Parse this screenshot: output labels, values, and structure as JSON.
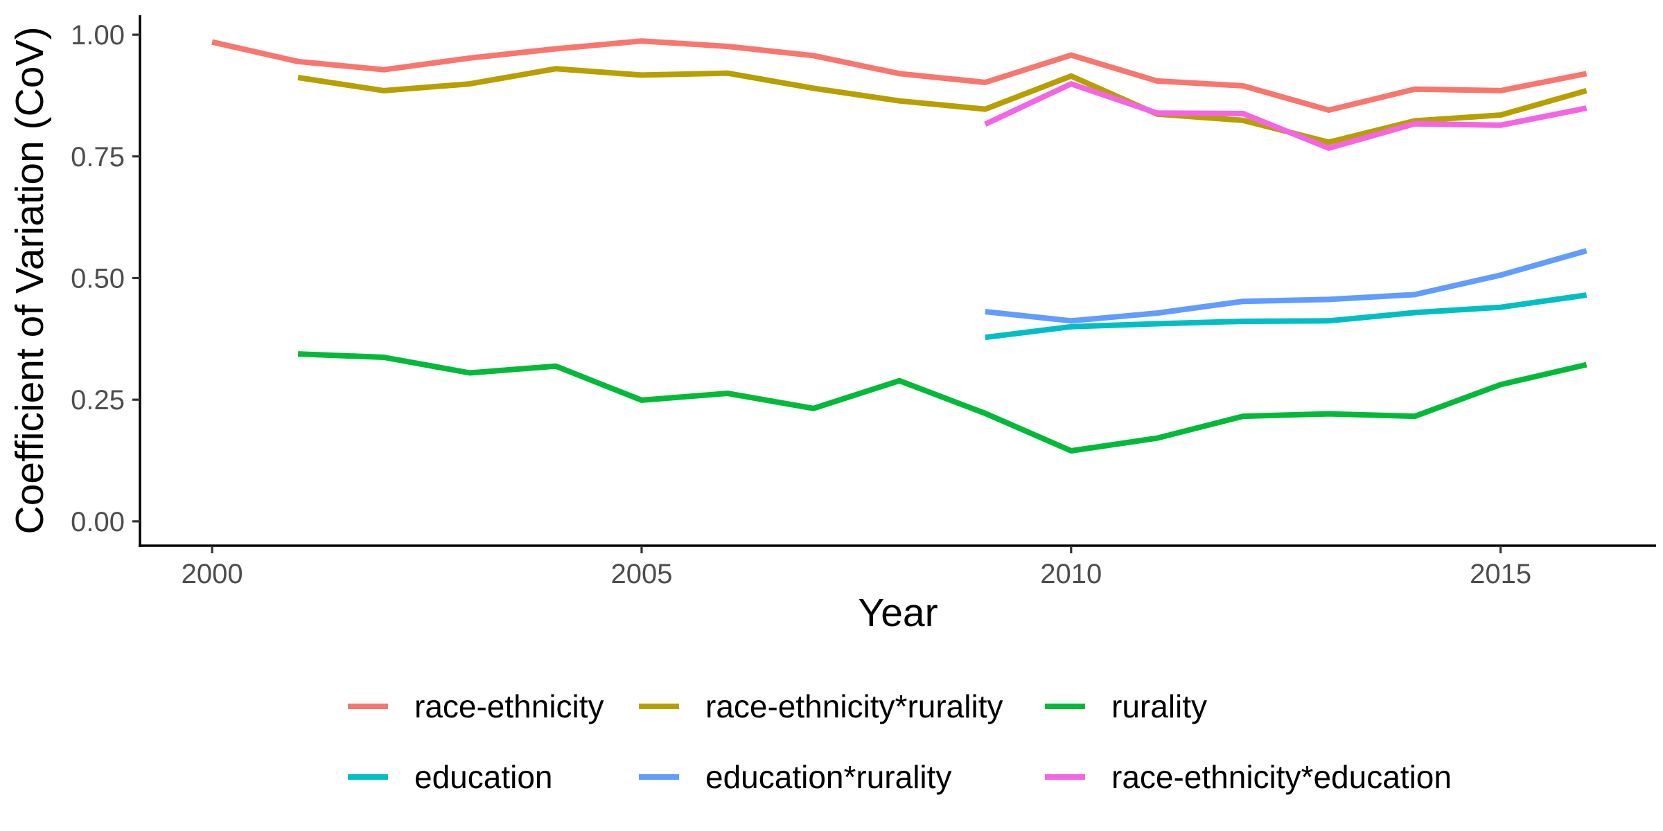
{
  "chart_data": {
    "type": "line",
    "xlabel": "Year",
    "ylabel": "Coefficient of Variation (CoV)",
    "xlim": [
      1999.16,
      2016.81
    ],
    "ylim": [
      -0.05,
      1.04
    ],
    "x_ticks": [
      {
        "value": 2000,
        "label": "2000"
      },
      {
        "value": 2005,
        "label": "2005"
      },
      {
        "value": 2010,
        "label": "2010"
      },
      {
        "value": 2015,
        "label": "2015"
      }
    ],
    "y_ticks": [
      {
        "value": 0.0,
        "label": "0.00"
      },
      {
        "value": 0.25,
        "label": "0.25"
      },
      {
        "value": 0.5,
        "label": "0.50"
      },
      {
        "value": 0.75,
        "label": "0.75"
      },
      {
        "value": 1.0,
        "label": "1.00"
      }
    ],
    "grid": false,
    "legend_position": "bottom",
    "series": [
      {
        "name": "race-ethnicity",
        "color": "#F8766D",
        "x": [
          2000,
          2001,
          2002,
          2003,
          2004,
          2005,
          2006,
          2007,
          2008,
          2009,
          2010,
          2011,
          2012,
          2013,
          2014,
          2015,
          2016
        ],
        "values": [
          0.985,
          0.945,
          0.928,
          0.952,
          0.971,
          0.987,
          0.976,
          0.957,
          0.92,
          0.902,
          0.958,
          0.905,
          0.895,
          0.845,
          0.888,
          0.885,
          0.92
        ]
      },
      {
        "name": "race-ethnicity*rurality",
        "color": "#B79F00",
        "x": [
          2001,
          2002,
          2003,
          2004,
          2005,
          2006,
          2007,
          2008,
          2009,
          2010,
          2011,
          2012,
          2013,
          2014,
          2015,
          2016
        ],
        "values": [
          0.912,
          0.885,
          0.899,
          0.93,
          0.917,
          0.921,
          0.89,
          0.864,
          0.847,
          0.915,
          0.837,
          0.824,
          0.779,
          0.823,
          0.835,
          0.885
        ]
      },
      {
        "name": "rurality",
        "color": "#00BA38",
        "x": [
          2001,
          2002,
          2003,
          2004,
          2005,
          2006,
          2007,
          2008,
          2009,
          2010,
          2011,
          2012,
          2013,
          2014,
          2015,
          2016
        ],
        "values": [
          0.344,
          0.337,
          0.305,
          0.319,
          0.249,
          0.263,
          0.232,
          0.289,
          0.222,
          0.145,
          0.171,
          0.216,
          0.221,
          0.216,
          0.281,
          0.322
        ]
      },
      {
        "name": "education",
        "color": "#00BFC4",
        "x": [
          2009,
          2010,
          2011,
          2012,
          2013,
          2014,
          2015,
          2016
        ],
        "values": [
          0.378,
          0.4,
          0.406,
          0.411,
          0.412,
          0.429,
          0.44,
          0.465
        ]
      },
      {
        "name": "education*rurality",
        "color": "#619CFF",
        "x": [
          2009,
          2010,
          2011,
          2012,
          2013,
          2014,
          2015,
          2016
        ],
        "values": [
          0.431,
          0.412,
          0.428,
          0.452,
          0.456,
          0.466,
          0.506,
          0.556
        ]
      },
      {
        "name": "race-ethnicity*education",
        "color": "#F564E3",
        "x": [
          2009,
          2010,
          2011,
          2012,
          2013,
          2014,
          2015,
          2016
        ],
        "values": [
          0.816,
          0.899,
          0.839,
          0.838,
          0.767,
          0.817,
          0.814,
          0.849
        ]
      }
    ]
  }
}
